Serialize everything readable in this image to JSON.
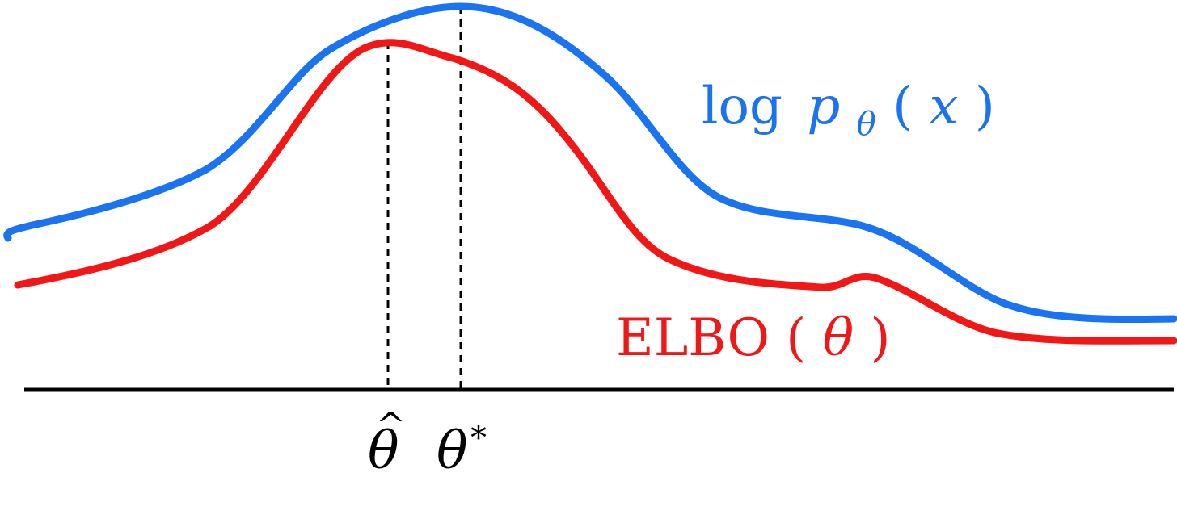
{
  "diagram": {
    "curves": {
      "log_likelihood": {
        "color": "#1a73f0",
        "label_prefix": "log",
        "label_p": "p",
        "label_sub": "θ",
        "label_open": "(",
        "label_x": "x",
        "label_close": ")"
      },
      "elbo": {
        "color": "#f21717",
        "label_prefix": "ELBO",
        "label_open": "(",
        "label_theta": "θ",
        "label_close": ")"
      }
    },
    "axis": {
      "color": "#000000"
    },
    "markers": {
      "theta_hat": {
        "symbol": "θ",
        "accent": "^"
      },
      "theta_star": {
        "symbol": "θ",
        "superscript": "*"
      }
    }
  }
}
